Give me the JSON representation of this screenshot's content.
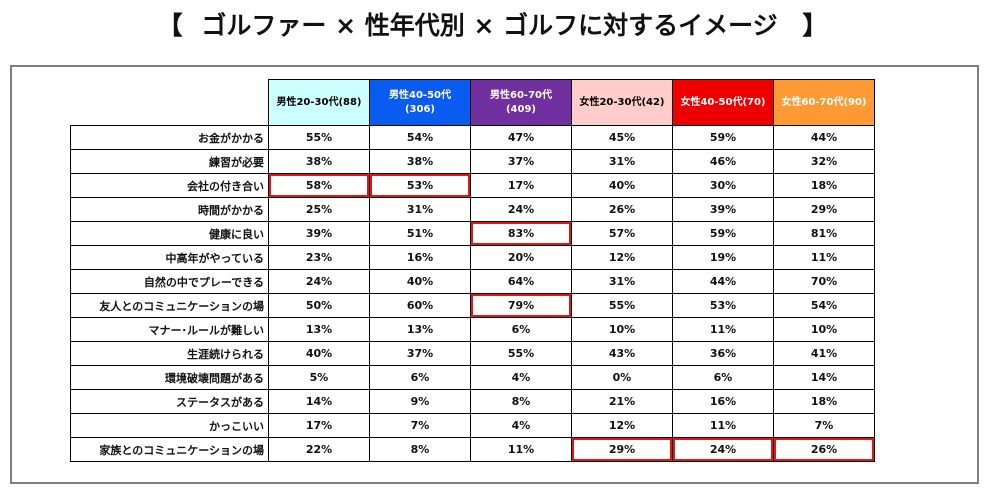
{
  "title": {
    "bracket_open": "【",
    "text": "ゴルファー × 性年代別 × ゴルフに対するイメージ",
    "bracket_close": "】"
  },
  "colors": {
    "male_20_30": "#ccffff",
    "male_40_50": "#0a5cf0",
    "male_60_70": "#7030a0",
    "female_20_30": "#ffcccc",
    "female_40_50": "#ee0000",
    "female_60_70": "#ff9933",
    "highlight": "#e01818"
  },
  "chart_data": {
    "type": "table",
    "title": "ゴルファー × 性年代別 × ゴルフに対するイメージ",
    "columns": [
      {
        "label": "男性20-30代(88)",
        "bg": "#ccffff",
        "fg": "#000000"
      },
      {
        "label": "男性40-50代\n(306)",
        "bg": "#0a5cf0",
        "fg": "#ffffff"
      },
      {
        "label": "男性60-70代\n(409)",
        "bg": "#7030a0",
        "fg": "#ffffff"
      },
      {
        "label": "女性20-30代(42)",
        "bg": "#ffcccc",
        "fg": "#000000"
      },
      {
        "label": "女性40-50代(70)",
        "bg": "#ee0000",
        "fg": "#ffffff"
      },
      {
        "label": "女性60-70代(90)",
        "bg": "#ff9933",
        "fg": "#ffffff"
      }
    ],
    "rows": [
      {
        "label": "お金がかかる",
        "values": [
          "55%",
          "54%",
          "47%",
          "45%",
          "59%",
          "44%"
        ],
        "highlight": []
      },
      {
        "label": "練習が必要",
        "values": [
          "38%",
          "38%",
          "37%",
          "31%",
          "46%",
          "32%"
        ],
        "highlight": []
      },
      {
        "label": "会社の付き合い",
        "values": [
          "58%",
          "53%",
          "17%",
          "40%",
          "30%",
          "18%"
        ],
        "highlight": [
          0,
          1
        ]
      },
      {
        "label": "時間がかかる",
        "values": [
          "25%",
          "31%",
          "24%",
          "26%",
          "39%",
          "29%"
        ],
        "highlight": []
      },
      {
        "label": "健康に良い",
        "values": [
          "39%",
          "51%",
          "83%",
          "57%",
          "59%",
          "81%"
        ],
        "highlight": [
          2
        ]
      },
      {
        "label": "中高年がやっている",
        "values": [
          "23%",
          "16%",
          "20%",
          "12%",
          "19%",
          "11%"
        ],
        "highlight": []
      },
      {
        "label": "自然の中でプレーできる",
        "values": [
          "24%",
          "40%",
          "64%",
          "31%",
          "44%",
          "70%"
        ],
        "highlight": []
      },
      {
        "label": "友人とのコミュニケーションの場",
        "values": [
          "50%",
          "60%",
          "79%",
          "55%",
          "53%",
          "54%"
        ],
        "highlight": [
          2
        ]
      },
      {
        "label": "マナー･ルールが難しい",
        "values": [
          "13%",
          "13%",
          "6%",
          "10%",
          "11%",
          "10%"
        ],
        "highlight": []
      },
      {
        "label": "生涯続けられる",
        "values": [
          "40%",
          "37%",
          "55%",
          "43%",
          "36%",
          "41%"
        ],
        "highlight": []
      },
      {
        "label": "環境破壊問題がある",
        "values": [
          "5%",
          "6%",
          "4%",
          "0%",
          "6%",
          "14%"
        ],
        "highlight": []
      },
      {
        "label": "ステータスがある",
        "values": [
          "14%",
          "9%",
          "8%",
          "21%",
          "16%",
          "18%"
        ],
        "highlight": []
      },
      {
        "label": "かっこいい",
        "values": [
          "17%",
          "7%",
          "4%",
          "12%",
          "11%",
          "7%"
        ],
        "highlight": []
      },
      {
        "label": "家族とのコミュニケーションの場",
        "values": [
          "22%",
          "8%",
          "11%",
          "29%",
          "24%",
          "26%"
        ],
        "highlight": [
          3,
          4,
          5
        ]
      }
    ]
  }
}
